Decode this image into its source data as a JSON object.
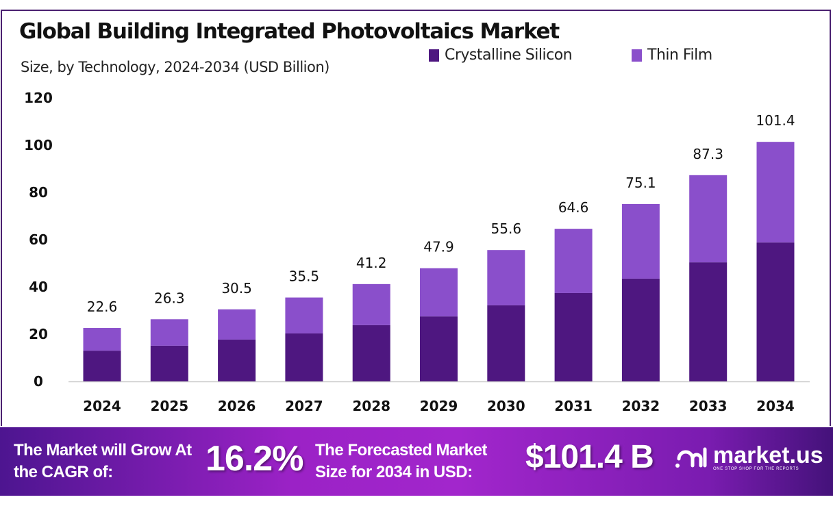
{
  "header": {
    "title": "Global Building Integrated Photovoltaics Market",
    "subtitle": "Size, by Technology, 2024-2034 (USD Billion)"
  },
  "chart_data": {
    "type": "bar",
    "stacked": true,
    "title": "Global Building Integrated Photovoltaics Market",
    "subtitle": "Size, by Technology, 2024-2034 (USD Billion)",
    "categories": [
      "2024",
      "2025",
      "2026",
      "2027",
      "2028",
      "2029",
      "2030",
      "2031",
      "2032",
      "2033",
      "2034"
    ],
    "series": [
      {
        "name": "Crystalline Silicon",
        "color": "#4e1780",
        "values": [
          13.0,
          15.1,
          17.7,
          20.3,
          23.8,
          27.5,
          32.2,
          37.4,
          43.5,
          50.4,
          58.8
        ]
      },
      {
        "name": "Thin Film",
        "color": "#8a4fcb",
        "values": [
          9.6,
          11.2,
          12.8,
          15.2,
          17.4,
          20.4,
          23.4,
          27.2,
          31.6,
          36.9,
          42.6
        ]
      }
    ],
    "totals": [
      "22.6",
      "26.3",
      "30.5",
      "35.5",
      "41.2",
      "47.9",
      "55.6",
      "64.6",
      "75.1",
      "87.3",
      "101.4"
    ],
    "yticks": [
      "0",
      "20",
      "40",
      "60",
      "80",
      "100",
      "120"
    ],
    "ylim": [
      0,
      120
    ],
    "grid": false,
    "legend": "top-right"
  },
  "footer": {
    "cagr_label": "The Market will Grow At the CAGR of:",
    "cagr_value": "16.2%",
    "forecast_label": "The Forecasted Market Size for 2034 in USD:",
    "forecast_value": "$101.4 B",
    "logo": {
      "name": "market.us",
      "tagline": "ONE STOP SHOP FOR THE REPORTS"
    }
  }
}
